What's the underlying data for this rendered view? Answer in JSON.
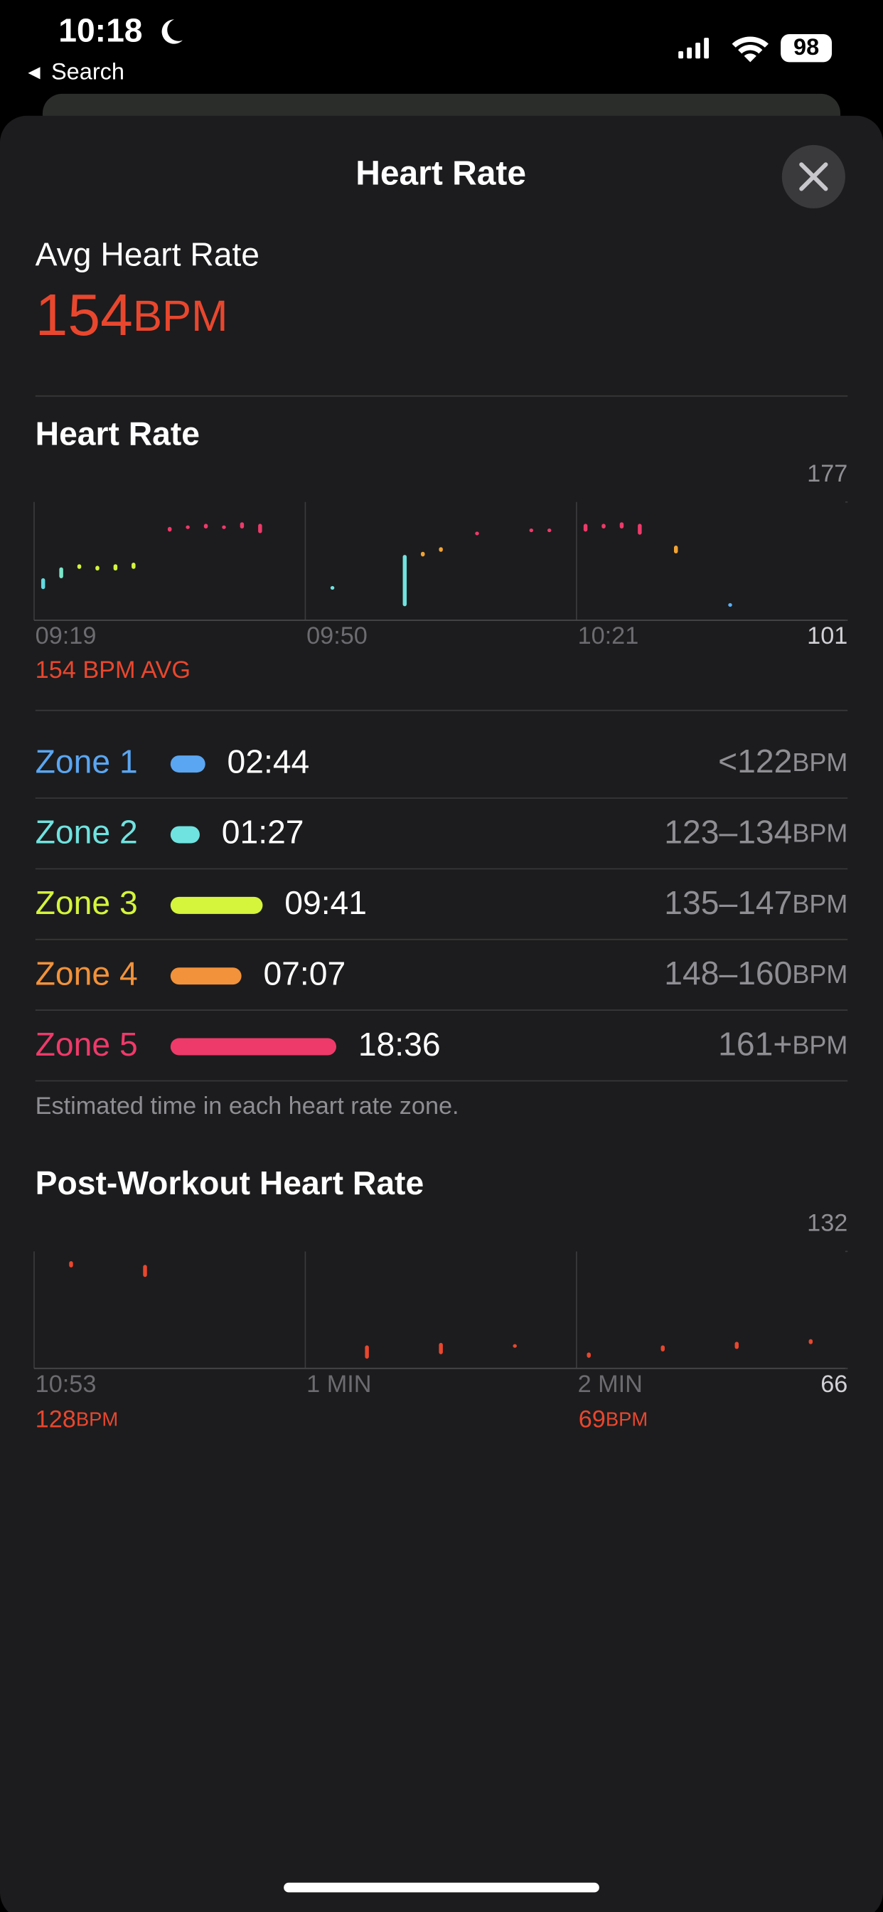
{
  "status_bar": {
    "time": "10:18",
    "back": "Search",
    "battery": "98"
  },
  "sheet_title": "Heart Rate",
  "average": {
    "label": "Avg Heart Rate",
    "value": "154",
    "unit": "BPM"
  },
  "heart_rate_chart": {
    "title": "Heart Rate",
    "ylim": [
      101,
      177
    ],
    "yticks": [
      101,
      177
    ],
    "x_labels": [
      "09:19",
      "09:50",
      "10:21"
    ],
    "avg_label": "154 BPM AVG",
    "samples": [
      [
        121,
        128
      ],
      [
        128,
        135
      ],
      [
        134,
        137
      ],
      [
        133,
        136
      ],
      [
        133,
        137
      ],
      [
        134,
        138
      ],
      null,
      [
        158,
        161
      ],
      [
        160,
        162
      ],
      [
        160,
        163
      ],
      [
        160,
        162
      ],
      [
        160,
        164
      ],
      [
        157,
        163
      ],
      null,
      null,
      null,
      [
        122,
        123
      ],
      null,
      null,
      null,
      [
        110,
        143
      ],
      [
        142,
        145
      ],
      [
        145,
        148
      ],
      null,
      [
        156,
        158
      ],
      null,
      null,
      [
        158,
        160
      ],
      [
        158,
        160
      ],
      null,
      [
        158,
        163
      ],
      [
        160,
        163
      ],
      [
        160,
        164
      ],
      [
        156,
        163
      ],
      null,
      [
        144,
        149
      ],
      null,
      null,
      [
        110,
        112
      ],
      null,
      null,
      null,
      null,
      null,
      null
    ],
    "colors": [
      "#63d9e0",
      "#7be6c8",
      "#d4f53c",
      "#d4f53c",
      "#d4f53c",
      "#d4f53c",
      null,
      "#ee3a6a",
      "#ee3a6a",
      "#ee3a6a",
      "#ee3a6a",
      "#ee3a6a",
      "#ee3a6a",
      null,
      null,
      null,
      "#6fe3e0",
      null,
      null,
      null,
      "#6fe3e0",
      "#f2a334",
      "#f2a334",
      null,
      "#ee3a6a",
      null,
      null,
      "#ee3a6a",
      "#ee3a6a",
      null,
      "#ee3a6a",
      "#ee3a6a",
      "#ee3a6a",
      "#ee3a6a",
      null,
      "#f2a334",
      null,
      null,
      "#5ab0f5",
      null,
      null,
      null,
      null,
      null,
      null
    ]
  },
  "zones": [
    {
      "name": "Zone 1",
      "duration": "02:44",
      "range": "<122",
      "unit": "BPM",
      "color": "#5aa6f2"
    },
    {
      "name": "Zone 2",
      "duration": "01:27",
      "range": "123–134",
      "unit": "BPM",
      "color": "#6fe3e0"
    },
    {
      "name": "Zone 3",
      "duration": "09:41",
      "range": "135–147",
      "unit": "BPM",
      "color": "#d4f53c"
    },
    {
      "name": "Zone 4",
      "duration": "07:07",
      "range": "148–160",
      "unit": "BPM",
      "color": "#f2923a"
    },
    {
      "name": "Zone 5",
      "duration": "18:36",
      "range": "161+",
      "unit": "BPM",
      "color": "#ee3a6a"
    }
  ],
  "zone_note": "Estimated time in each heart rate zone.",
  "post_workout_chart": {
    "title": "Post-Workout Heart Rate",
    "ylim": [
      66,
      132
    ],
    "yticks": [
      66,
      132
    ],
    "x_labels": [
      "10:53",
      "1 MIN",
      "2 MIN"
    ],
    "color": "#e8472e",
    "samples": [
      [
        123,
        126.5
      ],
      [
        117.6,
        124.4
      ],
      null,
      null,
      [
        71.5,
        79
      ],
      [
        74,
        80.4
      ],
      [
        77.7,
        79.7
      ],
      [
        72,
        75
      ],
      [
        75.6,
        79
      ],
      [
        77,
        81
      ],
      [
        79.7,
        82.5
      ]
    ],
    "start": {
      "value": "128",
      "unit": "BPM"
    },
    "end": {
      "value": "69",
      "unit": "BPM"
    }
  }
}
